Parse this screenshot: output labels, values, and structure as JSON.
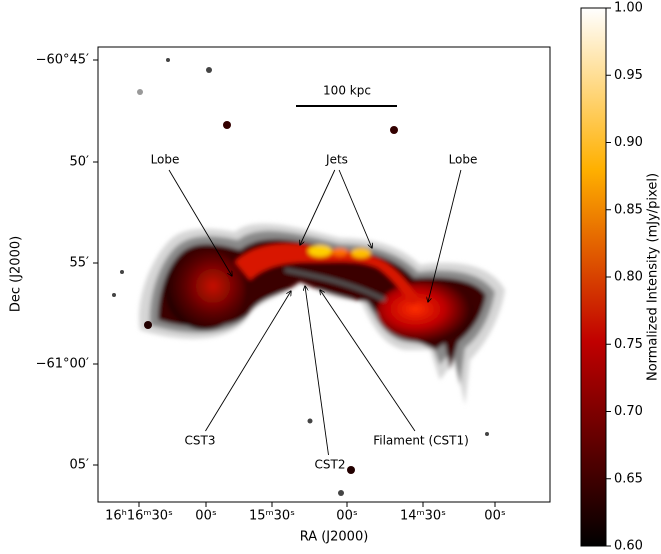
{
  "chart_data": {
    "type": "image",
    "xlabel": "RA (J2000)",
    "ylabel": "Dec (J2000)",
    "xtick_labels": [
      "16ʰ16ᵐ30ˢ",
      "00ˢ",
      "15ᵐ30ˢ",
      "00ˢ",
      "14ᵐ30ˢ",
      "00ˢ"
    ],
    "ytick_labels": [
      "−60°45′",
      "50′",
      "55′",
      "−61°00′",
      "05′"
    ],
    "scale_bar": "100 kpc",
    "annotations": [
      "Lobe",
      "Jets",
      "Lobe",
      "CST3",
      "CST2",
      "Filament (CST1)"
    ],
    "colorbar": {
      "label": "Normalized Intensity (mJy/pixel)",
      "colormap": "hot",
      "lim": [
        0.6,
        1.0
      ],
      "ticks": [
        {
          "value": 0.6,
          "label": "0.60"
        },
        {
          "value": 0.65,
          "label": "0.65"
        },
        {
          "value": 0.7,
          "label": "0.70"
        },
        {
          "value": 0.75,
          "label": "0.75"
        },
        {
          "value": 0.8,
          "label": "0.80"
        },
        {
          "value": 0.85,
          "label": "0.85"
        },
        {
          "value": 0.9,
          "label": "0.90"
        },
        {
          "value": 0.95,
          "label": "0.95"
        },
        {
          "value": 1.0,
          "label": "1.00"
        }
      ]
    }
  }
}
